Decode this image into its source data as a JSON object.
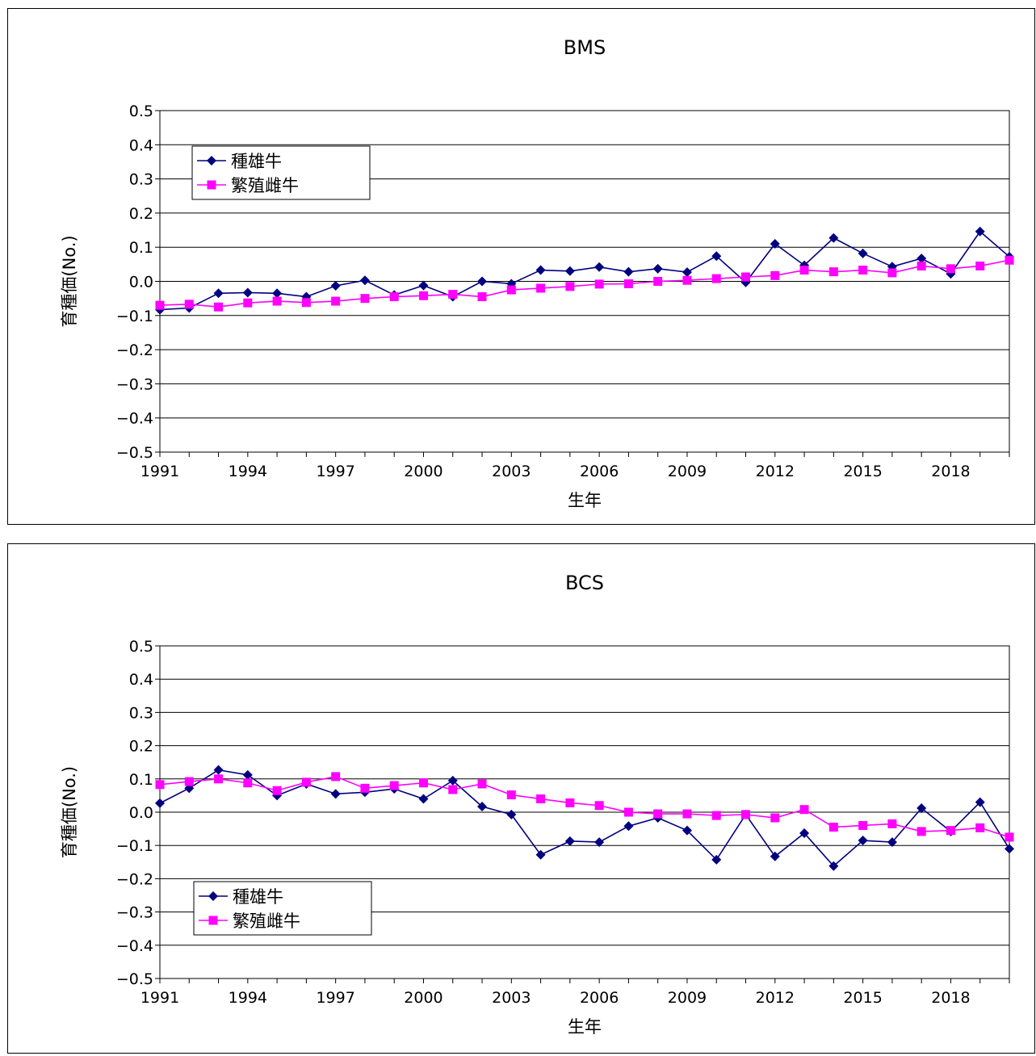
{
  "chart_data": [
    {
      "type": "line",
      "title": "BMS",
      "xlabel": "生年",
      "ylabel": "育種価(No.)",
      "ylim": [
        -0.5,
        0.5
      ],
      "yticks": [
        "0.5",
        "0.4",
        "0.3",
        "0.2",
        "0.1",
        "0.0",
        "−0.1",
        "−0.2",
        "−0.3",
        "−0.4",
        "−0.5"
      ],
      "xticks": [
        "1991",
        "1994",
        "1997",
        "2000",
        "2003",
        "2006",
        "2009",
        "2012",
        "2015",
        "2018"
      ],
      "x": [
        1991,
        1992,
        1993,
        1994,
        1995,
        1996,
        1997,
        1998,
        1999,
        2000,
        2001,
        2002,
        2003,
        2004,
        2005,
        2006,
        2007,
        2008,
        2009,
        2010,
        2011,
        2012,
        2013,
        2014,
        2015,
        2016,
        2017,
        2018,
        2019,
        2020
      ],
      "grid": true,
      "legend": "upper-left",
      "series": [
        {
          "name": "種雄牛",
          "color": "#00007f",
          "marker": "diamond",
          "values": [
            -0.083,
            -0.078,
            -0.035,
            -0.033,
            -0.035,
            -0.045,
            -0.013,
            0.003,
            -0.04,
            -0.012,
            -0.045,
            0.0,
            -0.007,
            0.033,
            0.03,
            0.042,
            0.028,
            0.037,
            0.027,
            0.074,
            -0.003,
            0.11,
            0.047,
            0.127,
            0.082,
            0.043,
            0.067,
            0.022,
            0.146,
            0.072
          ]
        },
        {
          "name": "繁殖雌牛",
          "color": "#ff00ff",
          "marker": "square",
          "values": [
            -0.07,
            -0.067,
            -0.075,
            -0.063,
            -0.058,
            -0.062,
            -0.058,
            -0.05,
            -0.045,
            -0.042,
            -0.038,
            -0.045,
            -0.025,
            -0.02,
            -0.015,
            -0.008,
            -0.007,
            0.0,
            0.003,
            0.008,
            0.013,
            0.017,
            0.033,
            0.028,
            0.033,
            0.025,
            0.045,
            0.037,
            0.045,
            0.062
          ]
        }
      ]
    },
    {
      "type": "line",
      "title": "BCS",
      "xlabel": "生年",
      "ylabel": "育種価(No.)",
      "ylim": [
        -0.5,
        0.5
      ],
      "yticks": [
        "0.5",
        "0.4",
        "0.3",
        "0.2",
        "0.1",
        "0.0",
        "−0.1",
        "−0.2",
        "−0.3",
        "−0.4",
        "−0.5"
      ],
      "xticks": [
        "1991",
        "1994",
        "1997",
        "2000",
        "2003",
        "2006",
        "2009",
        "2012",
        "2015",
        "2018"
      ],
      "x": [
        1991,
        1992,
        1993,
        1994,
        1995,
        1996,
        1997,
        1998,
        1999,
        2000,
        2001,
        2002,
        2003,
        2004,
        2005,
        2006,
        2007,
        2008,
        2009,
        2010,
        2011,
        2012,
        2013,
        2014,
        2015,
        2016,
        2017,
        2018,
        2019,
        2020
      ],
      "grid": true,
      "legend": "lower-left",
      "series": [
        {
          "name": "種雄牛",
          "color": "#00007f",
          "marker": "diamond",
          "values": [
            0.027,
            0.072,
            0.127,
            0.112,
            0.05,
            0.085,
            0.055,
            0.06,
            0.07,
            0.04,
            0.095,
            0.017,
            -0.007,
            -0.128,
            -0.087,
            -0.09,
            -0.042,
            -0.017,
            -0.055,
            -0.143,
            -0.007,
            -0.133,
            -0.063,
            -0.162,
            -0.085,
            -0.09,
            0.012,
            -0.058,
            0.03,
            -0.11
          ]
        },
        {
          "name": "繁殖雌牛",
          "color": "#ff00ff",
          "marker": "square",
          "values": [
            0.083,
            0.092,
            0.1,
            0.088,
            0.065,
            0.09,
            0.107,
            0.072,
            0.08,
            0.088,
            0.068,
            0.085,
            0.052,
            0.04,
            0.028,
            0.02,
            0.0,
            -0.005,
            -0.005,
            -0.01,
            -0.007,
            -0.017,
            0.008,
            -0.045,
            -0.04,
            -0.035,
            -0.058,
            -0.055,
            -0.047,
            -0.075
          ]
        }
      ]
    }
  ]
}
